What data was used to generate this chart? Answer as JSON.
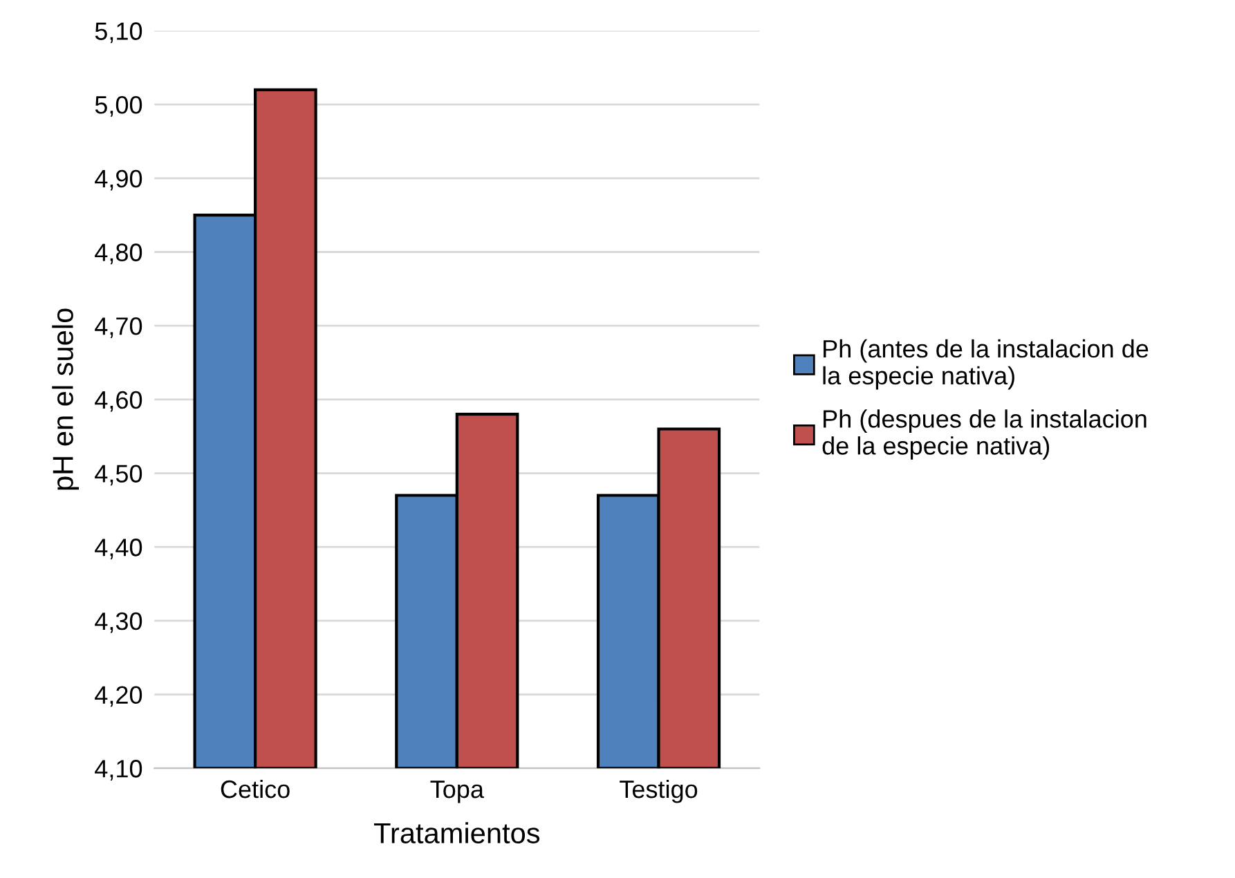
{
  "chart_data": {
    "type": "bar",
    "xlabel": "Tratamientos",
    "ylabel": "pH en el suelo",
    "categories": [
      "Cetico",
      "Topa",
      "Testigo"
    ],
    "series": [
      {
        "name": "Ph (antes de la instalacion de\nla especie nativa)",
        "color": "#4f81bd",
        "values": [
          4.85,
          4.47,
          4.47
        ]
      },
      {
        "name": "Ph (despues de la instalacion\nde la especie nativa)",
        "color": "#c0504d",
        "values": [
          5.02,
          4.58,
          4.56
        ]
      }
    ],
    "ylim": [
      4.1,
      5.1
    ],
    "yticks": [
      {
        "value": 4.1,
        "label": "4,10"
      },
      {
        "value": 4.2,
        "label": "4,20"
      },
      {
        "value": 4.3,
        "label": "4,30"
      },
      {
        "value": 4.4,
        "label": "4,40"
      },
      {
        "value": 4.5,
        "label": "4,50"
      },
      {
        "value": 4.6,
        "label": "4,60"
      },
      {
        "value": 4.7,
        "label": "4,70"
      },
      {
        "value": 4.8,
        "label": "4,80"
      },
      {
        "value": 4.9,
        "label": "4,90"
      },
      {
        "value": 5.0,
        "label": "5,00"
      },
      {
        "value": 5.1,
        "label": "5,10"
      }
    ],
    "grid": "y",
    "legend": "right"
  }
}
